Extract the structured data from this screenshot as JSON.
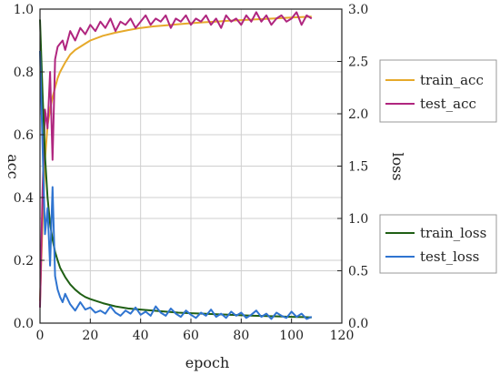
{
  "chart_data": {
    "type": "line",
    "xlabel": "epoch",
    "ylabel_left": "acc",
    "ylabel_right": "loss",
    "xlim": [
      0,
      120
    ],
    "ylim_left": [
      0.0,
      1.0
    ],
    "ylim_right": [
      0.0,
      3.0
    ],
    "x_ticks": [
      0,
      20,
      40,
      60,
      80,
      100,
      120
    ],
    "y_left_ticks": [
      0.0,
      0.2,
      0.4,
      0.6,
      0.8,
      1.0
    ],
    "y_right_ticks": [
      0.0,
      0.5,
      1.0,
      1.5,
      2.0,
      2.5,
      3.0
    ],
    "grid": true,
    "legends": [
      {
        "placement": "upper-right",
        "entries": [
          "train_acc",
          "test_acc"
        ]
      },
      {
        "placement": "lower-right",
        "entries": [
          "train_loss",
          "test_loss"
        ]
      }
    ],
    "series": [
      {
        "name": "train_acc",
        "axis": "left",
        "color": "#e6a92a",
        "x": [
          0,
          1,
          2,
          3,
          4,
          5,
          6,
          7,
          8,
          10,
          12,
          14,
          16,
          18,
          20,
          25,
          30,
          35,
          40,
          45,
          50,
          55,
          60,
          65,
          70,
          75,
          80,
          85,
          90,
          95,
          100,
          105,
          108
        ],
        "y": [
          0.07,
          0.32,
          0.52,
          0.63,
          0.68,
          0.72,
          0.75,
          0.78,
          0.8,
          0.83,
          0.855,
          0.87,
          0.88,
          0.89,
          0.9,
          0.915,
          0.925,
          0.933,
          0.94,
          0.945,
          0.948,
          0.952,
          0.955,
          0.958,
          0.96,
          0.963,
          0.965,
          0.967,
          0.969,
          0.971,
          0.973,
          0.975,
          0.976
        ]
      },
      {
        "name": "test_acc",
        "axis": "left",
        "color": "#b0267f",
        "x": [
          0,
          1,
          2,
          3,
          4,
          5,
          6,
          7,
          8,
          9,
          10,
          12,
          14,
          16,
          18,
          20,
          22,
          24,
          26,
          28,
          30,
          32,
          34,
          36,
          38,
          40,
          42,
          44,
          46,
          48,
          50,
          52,
          54,
          56,
          58,
          60,
          62,
          64,
          66,
          68,
          70,
          72,
          74,
          76,
          78,
          80,
          82,
          84,
          86,
          88,
          90,
          92,
          94,
          96,
          98,
          100,
          102,
          104,
          106,
          108
        ],
        "y": [
          0.05,
          0.42,
          0.68,
          0.62,
          0.8,
          0.52,
          0.84,
          0.88,
          0.89,
          0.9,
          0.87,
          0.93,
          0.9,
          0.94,
          0.92,
          0.95,
          0.93,
          0.96,
          0.94,
          0.97,
          0.93,
          0.96,
          0.95,
          0.97,
          0.94,
          0.96,
          0.98,
          0.95,
          0.97,
          0.96,
          0.98,
          0.94,
          0.97,
          0.96,
          0.98,
          0.95,
          0.97,
          0.96,
          0.98,
          0.95,
          0.97,
          0.94,
          0.98,
          0.96,
          0.97,
          0.95,
          0.98,
          0.96,
          0.99,
          0.96,
          0.98,
          0.95,
          0.97,
          0.98,
          0.96,
          0.97,
          0.99,
          0.95,
          0.98,
          0.97
        ]
      },
      {
        "name": "train_loss",
        "axis": "right",
        "color": "#1f5f14",
        "x": [
          0,
          1,
          2,
          3,
          4,
          5,
          6,
          7,
          8,
          10,
          12,
          14,
          16,
          18,
          20,
          25,
          30,
          35,
          40,
          45,
          50,
          55,
          60,
          65,
          70,
          75,
          80,
          85,
          90,
          95,
          100,
          105,
          108
        ],
        "y": [
          2.9,
          2.2,
          1.6,
          1.2,
          0.95,
          0.8,
          0.68,
          0.6,
          0.53,
          0.44,
          0.37,
          0.32,
          0.28,
          0.25,
          0.23,
          0.19,
          0.16,
          0.14,
          0.13,
          0.12,
          0.11,
          0.1,
          0.095,
          0.09,
          0.085,
          0.08,
          0.075,
          0.07,
          0.067,
          0.064,
          0.06,
          0.057,
          0.055
        ]
      },
      {
        "name": "test_loss",
        "axis": "right",
        "color": "#2f74d0",
        "x": [
          0,
          1,
          2,
          3,
          4,
          5,
          6,
          7,
          8,
          9,
          10,
          12,
          14,
          16,
          18,
          20,
          22,
          24,
          26,
          28,
          30,
          32,
          34,
          36,
          38,
          40,
          42,
          44,
          46,
          48,
          50,
          52,
          54,
          56,
          58,
          60,
          62,
          64,
          66,
          68,
          70,
          72,
          74,
          76,
          78,
          80,
          82,
          84,
          86,
          88,
          90,
          92,
          94,
          96,
          98,
          100,
          102,
          104,
          106,
          108
        ],
        "y": [
          2.6,
          1.7,
          0.85,
          1.1,
          0.55,
          1.3,
          0.45,
          0.32,
          0.25,
          0.2,
          0.28,
          0.18,
          0.12,
          0.2,
          0.13,
          0.15,
          0.1,
          0.12,
          0.09,
          0.16,
          0.1,
          0.07,
          0.12,
          0.09,
          0.15,
          0.08,
          0.11,
          0.07,
          0.16,
          0.1,
          0.07,
          0.14,
          0.09,
          0.06,
          0.12,
          0.08,
          0.05,
          0.1,
          0.07,
          0.13,
          0.06,
          0.09,
          0.05,
          0.11,
          0.07,
          0.1,
          0.05,
          0.08,
          0.12,
          0.06,
          0.09,
          0.04,
          0.1,
          0.07,
          0.05,
          0.11,
          0.06,
          0.09,
          0.04,
          0.06
        ]
      }
    ]
  }
}
